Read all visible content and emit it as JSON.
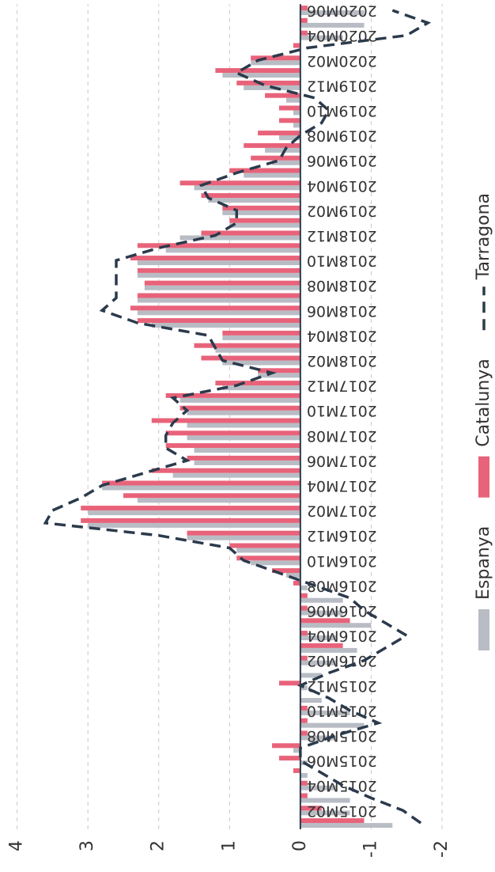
{
  "chart_data": {
    "type": "bar",
    "categories": [
      null,
      "2015M02",
      null,
      "2015M04",
      null,
      "2015M06",
      null,
      "2015M08",
      null,
      "2015M10",
      null,
      "2015M12",
      null,
      "2016M02",
      null,
      "2016M04",
      null,
      "2016M06",
      null,
      "2016M08",
      null,
      "2016M10",
      null,
      "2016M12",
      null,
      "2017M02",
      null,
      "2017M04",
      null,
      "2017M06",
      null,
      "2017M08",
      null,
      "2017M10",
      null,
      "2017M12",
      null,
      "2018M02",
      null,
      "2018M04",
      null,
      "2018M06",
      null,
      "2018M08",
      null,
      "2018M10",
      null,
      "2018M12",
      null,
      "2019M02",
      null,
      "2019M04",
      null,
      "2019M06",
      null,
      "2019M08",
      null,
      "2019M10",
      null,
      "2019M12",
      null,
      "2020M02",
      null,
      "2020M04",
      null,
      "2020M06"
    ],
    "series": [
      {
        "name": "Espanya",
        "color": "#b8bcc4",
        "values": [
          -1.3,
          -0.7,
          -0.7,
          -0.5,
          -0.1,
          -0.1,
          0.1,
          -0.5,
          -0.9,
          -0.7,
          -0.3,
          -0.1,
          -0.3,
          -0.5,
          -0.8,
          -0.5,
          -1.0,
          -0.6,
          -0.6,
          -0.1,
          0.2,
          0.7,
          0.9,
          1.6,
          3.0,
          3.0,
          2.3,
          2.8,
          1.8,
          1.5,
          1.5,
          1.6,
          1.6,
          1.6,
          1.7,
          1.1,
          0.6,
          1.1,
          1.2,
          1.1,
          2.1,
          2.3,
          2.3,
          2.2,
          2.3,
          2.3,
          1.9,
          1.7,
          1.0,
          1.1,
          1.3,
          1.5,
          0.8,
          0.4,
          0.5,
          0.3,
          0.1,
          0.1,
          0.2,
          0.8,
          1.1,
          0.7,
          0.0,
          -0.6,
          -0.9,
          -0.9
        ]
      },
      {
        "name": "Catalunya",
        "color": "#e8637a",
        "values": [
          -0.9,
          -0.3,
          -0.1,
          -0.1,
          0.1,
          0.3,
          0.4,
          -0.1,
          -0.1,
          -0.1,
          0.0,
          0.3,
          0.0,
          -0.1,
          -0.6,
          -0.1,
          -0.7,
          -0.1,
          -0.1,
          0.1,
          0.4,
          0.9,
          1.0,
          1.6,
          3.1,
          3.1,
          2.5,
          2.8,
          2.1,
          1.6,
          1.9,
          1.9,
          2.1,
          1.7,
          1.9,
          1.2,
          0.6,
          1.4,
          1.5,
          1.1,
          2.3,
          2.4,
          2.3,
          2.2,
          2.3,
          2.4,
          2.3,
          1.4,
          1.0,
          1.1,
          1.4,
          1.7,
          1.0,
          0.7,
          0.8,
          0.6,
          0.3,
          0.3,
          0.5,
          0.9,
          1.2,
          0.7,
          0.1,
          -0.1,
          -0.1,
          -0.1
        ]
      },
      {
        "name": "Tarragona",
        "color": "#2b3a4c",
        "type": "line",
        "values": [
          -1.7,
          -1.45,
          -1.0,
          -0.6,
          -0.3,
          0.0,
          0.0,
          -0.5,
          -1.1,
          -0.7,
          -0.4,
          0.0,
          -0.4,
          -0.9,
          -1.2,
          -1.5,
          -1.2,
          -0.9,
          -0.7,
          -0.2,
          0.3,
          0.8,
          1.0,
          2.0,
          3.6,
          3.5,
          3.1,
          2.8,
          2.2,
          1.6,
          1.9,
          1.9,
          1.8,
          1.6,
          1.8,
          0.9,
          0.4,
          1.1,
          1.2,
          1.3,
          2.3,
          2.8,
          2.6,
          2.6,
          2.6,
          2.6,
          2.0,
          1.2,
          0.9,
          0.9,
          1.3,
          1.4,
          0.9,
          0.3,
          0.2,
          0.0,
          -0.3,
          -0.4,
          -0.2,
          0.5,
          0.9,
          0.6,
          -0.1,
          -1.5,
          -1.8,
          -1.3
        ]
      }
    ],
    "ylim": [
      -2,
      4
    ],
    "yticks": [
      -2,
      -1,
      0,
      1,
      2,
      3,
      4
    ],
    "grid": true,
    "legend": "bottom"
  }
}
